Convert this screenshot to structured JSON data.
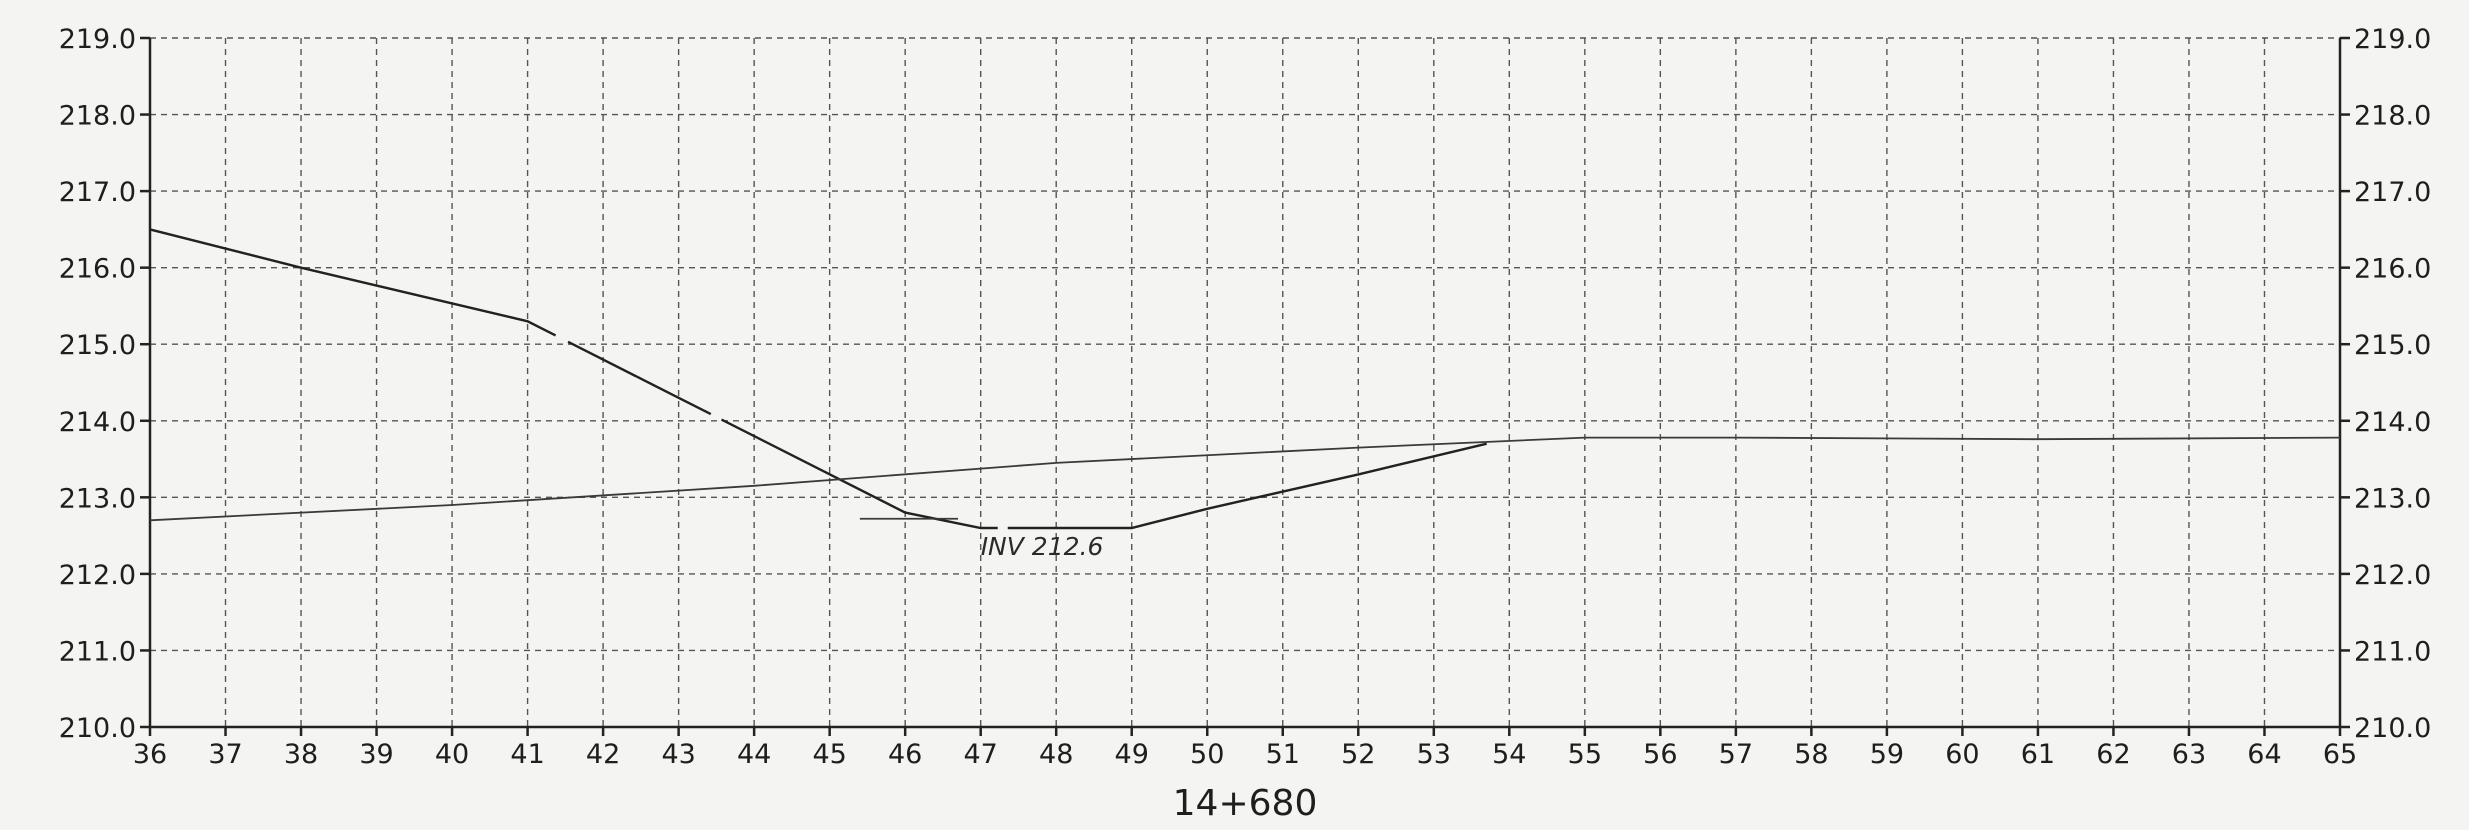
{
  "chart_data": {
    "type": "line",
    "title": "",
    "xlabel": "14+680",
    "ylabel": "",
    "xlim": [
      36,
      65
    ],
    "ylim": [
      210.0,
      219.0
    ],
    "x_ticks": [
      36,
      37,
      38,
      39,
      40,
      41,
      42,
      43,
      44,
      45,
      46,
      47,
      48,
      49,
      50,
      51,
      52,
      53,
      54,
      55,
      56,
      57,
      58,
      59,
      60,
      61,
      62,
      63,
      64,
      65
    ],
    "y_ticks": [
      "210.0",
      "211.0",
      "212.0",
      "213.0",
      "214.0",
      "215.0",
      "216.0",
      "217.0",
      "218.0",
      "219.0"
    ],
    "grid": true,
    "annotation": {
      "text": "INV 212.6",
      "x": 47.0,
      "y": 212.35
    },
    "series": [
      {
        "style": "solid-dashed",
        "points": [
          [
            36.0,
            216.5
          ],
          [
            38.0,
            216.0
          ],
          [
            41.0,
            215.3
          ],
          [
            43.0,
            214.3
          ],
          [
            46.0,
            212.8
          ],
          [
            47.0,
            212.6
          ],
          [
            49.0,
            212.6
          ],
          [
            50.0,
            212.85
          ],
          [
            52.0,
            213.3
          ],
          [
            53.7,
            213.7
          ]
        ]
      },
      {
        "style": "thin",
        "points": [
          [
            36.0,
            212.7
          ],
          [
            40.0,
            212.9
          ],
          [
            44.0,
            213.15
          ],
          [
            48.0,
            213.45
          ],
          [
            52.0,
            213.65
          ],
          [
            55.0,
            213.78
          ],
          [
            57.0,
            213.78
          ],
          [
            61.0,
            213.76
          ],
          [
            65.0,
            213.78
          ]
        ]
      }
    ]
  }
}
